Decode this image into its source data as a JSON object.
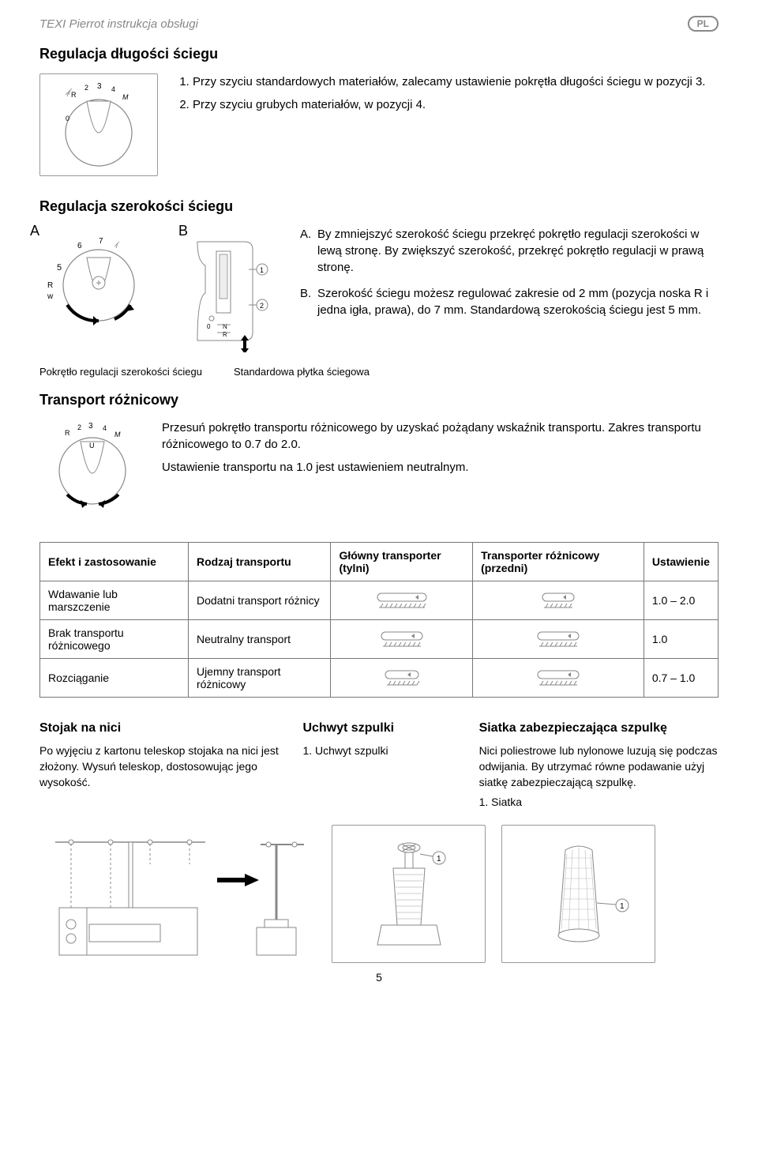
{
  "doc_header": "TEXI Pierrot instrukcja obsługi",
  "lang": "PL",
  "section1": {
    "title": "Regulacja długości ściegu",
    "items": [
      "Przy szyciu standardowych materiałów, zalecamy ustawienie pokrętła długości ściegu w pozycji 3.",
      "Przy szyciu grubych materiałów, w pozycji 4."
    ],
    "dial": {
      "marks": "R 2 3 4 M",
      "R": "R",
      "two": "2",
      "three": "3",
      "four": "4",
      "M": "M",
      "zero": "0"
    }
  },
  "section2": {
    "title": "Regulacja szerokości ściegu",
    "labelA": "A",
    "labelB": "B",
    "plateMarks": {
      "one": "1",
      "two": "2",
      "zero": "0",
      "N": "N",
      "R": "R"
    },
    "dialMarks": {
      "five": "5",
      "six": "6",
      "seven": "7",
      "R": "R",
      "w": "w"
    },
    "items": [
      {
        "letter": "A.",
        "text": "By zmniejszyć szerokość ściegu przekręć pokrętło regulacji szerokości w lewą stronę. By zwiększyć szerokość, przekręć pokrętło regulacji w prawą stronę."
      },
      {
        "letter": "B.",
        "text": "Szerokość ściegu możesz regulować zakresie od 2 mm (pozycja noska R i jedna igła, prawa), do 7 mm. Standardową szerokością ściegu jest 5 mm."
      }
    ],
    "captionA": "Pokrętło regulacji szerokości ściegu",
    "captionB": "Standardowa płytka ściegowa"
  },
  "section3": {
    "title": "Transport różnicowy",
    "body1": "Przesuń pokrętło transportu różnicowego by uzyskać pożądany wskaźnik transportu. Zakres transportu różnicowego to 0.7 do 2.0.",
    "body2": "Ustawienie transportu na 1.0 jest ustawieniem neutralnym.",
    "dial": {
      "R": "R",
      "two": "2",
      "three": "3",
      "four": "4",
      "M": "M",
      "U": "U"
    }
  },
  "table": {
    "headers": [
      "Efekt i zastosowanie",
      "Rodzaj transportu",
      "Główny transporter (tylni)",
      "Transporter różnicowy (przedni)",
      "Ustawienie"
    ],
    "rows": [
      {
        "c0": "Wdawanie lub marszczenie",
        "c1": "Dodatni transport różnicy",
        "c4": "1.0 – 2.0",
        "main_len": 50,
        "diff_len": 28
      },
      {
        "c0": "Brak transportu różnicowego",
        "c1": "Neutralny transport",
        "c4": "1.0",
        "main_len": 40,
        "diff_len": 40
      },
      {
        "c0": "Rozciąganie",
        "c1": "Ujemny transport różnicowy",
        "c4": "0.7 – 1.0",
        "main_len": 30,
        "diff_len": 40
      }
    ]
  },
  "bottom": {
    "col1": {
      "title": "Stojak na nici",
      "text": "Po wyjęciu z kartonu teleskop stojaka na nici jest złożony. Wysuń teleskop, dostosowując jego wysokość."
    },
    "col2": {
      "title": "Uchwyt szpulki",
      "item1_num": "1.",
      "item1_text": "Uchwyt szpulki",
      "callout": "1"
    },
    "col3": {
      "title": "Siatka zabezpieczająca szpulkę",
      "text": "Nici poliestrowe lub nylonowe luzują się podczas odwijania. By utrzymać równe podawanie użyj siatkę zabezpieczającą szpulkę.",
      "item1_num": "1.",
      "item1_text": "Siatka",
      "callout": "1"
    }
  },
  "page": "5",
  "colors": {
    "text": "#000000",
    "muted": "#888888",
    "border": "#777777",
    "bg": "#ffffff",
    "lightgray": "#bbbbbb"
  }
}
